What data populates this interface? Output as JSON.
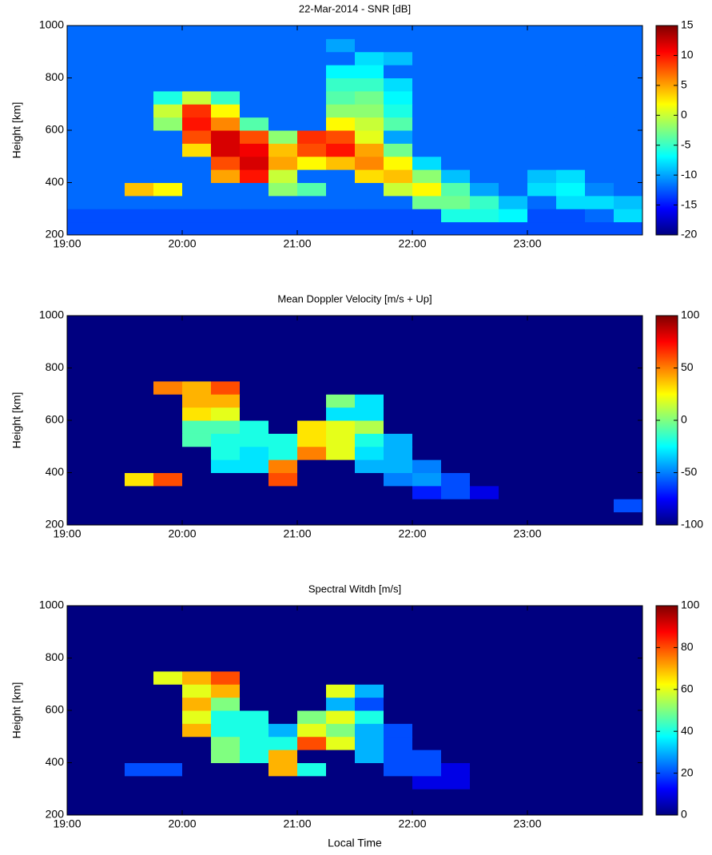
{
  "chart_data": [
    {
      "type": "heatmap",
      "title": "22-Mar-2014 - SNR [dB]",
      "ylabel": "Height [km]",
      "colormap": "jet",
      "xlim": [
        19,
        24
      ],
      "ylim": [
        200,
        1000
      ],
      "xticks": [
        {
          "value": 19,
          "label": "19:00"
        },
        {
          "value": 20,
          "label": "20:00"
        },
        {
          "value": 21,
          "label": "21:00"
        },
        {
          "value": 22,
          "label": "22:00"
        },
        {
          "value": 23,
          "label": "23:00"
        }
      ],
      "yticks": [
        200,
        400,
        600,
        800,
        1000
      ],
      "zlim": [
        -20,
        15
      ],
      "zticks": [
        -20,
        -15,
        -10,
        -5,
        0,
        5,
        10,
        15
      ],
      "xbins": [
        19,
        19.25,
        19.5,
        19.75,
        20,
        20.25,
        20.5,
        20.75,
        21,
        21.25,
        21.5,
        21.75,
        22,
        22.25,
        22.5,
        22.75,
        23,
        23.25,
        23.5,
        23.75,
        24
      ],
      "ybins": [
        200,
        250,
        300,
        350,
        400,
        450,
        500,
        550,
        600,
        650,
        700,
        750,
        800,
        850,
        900,
        950,
        1000
      ],
      "z": [
        [
          -13,
          -13,
          -13,
          -13,
          -13,
          -13,
          -13,
          -13,
          -13,
          -13,
          -13,
          -13,
          -13,
          -13,
          -13,
          -13,
          -13,
          -13,
          -13,
          -13
        ],
        [
          -13,
          -13,
          -13,
          -13,
          -13,
          -13,
          -13,
          -13,
          -13,
          -13,
          -13,
          -13,
          -13,
          -6,
          -6,
          -7,
          -13,
          -13,
          -12,
          -8
        ],
        [
          -12,
          -12,
          -12,
          -12,
          -12,
          -12,
          -12,
          -12,
          -12,
          -12,
          -12,
          -12,
          -3,
          -3,
          -5,
          -9,
          -12,
          -8,
          -8,
          -9
        ],
        [
          -12,
          -12,
          4,
          2,
          -12,
          -12,
          -12,
          -2,
          -4,
          -12,
          -12,
          0,
          2,
          -4,
          -10,
          -12,
          -8,
          -7,
          -11,
          -12
        ],
        [
          -12,
          -12,
          -12,
          -12,
          -12,
          5,
          10,
          0,
          -12,
          -12,
          3,
          4,
          -2,
          -9,
          -12,
          -12,
          -9,
          -8,
          -12,
          -12
        ],
        [
          -12,
          -12,
          -12,
          -12,
          -12,
          8,
          12,
          5,
          2,
          4,
          6,
          2,
          -8,
          -12,
          -12,
          -12,
          -12,
          -12,
          -12,
          -12
        ],
        [
          -12,
          -12,
          -12,
          -12,
          3,
          12,
          11,
          4,
          8,
          10,
          5,
          -3,
          -12,
          -12,
          -12,
          -12,
          -12,
          -12,
          -12,
          -12
        ],
        [
          -12,
          -12,
          -12,
          -12,
          8,
          12,
          8,
          -2,
          9,
          8,
          1,
          -10,
          -12,
          -12,
          -12,
          -12,
          -12,
          -12,
          -12,
          -12
        ],
        [
          -12,
          -12,
          -12,
          -2,
          10,
          6,
          -4,
          -12,
          -12,
          2,
          0,
          -4,
          -12,
          -12,
          -12,
          -12,
          -12,
          -12,
          -12,
          -12
        ],
        [
          -12,
          -12,
          -12,
          0,
          9,
          2,
          -12,
          -12,
          -12,
          -2,
          -2,
          -6,
          -12,
          -12,
          -12,
          -12,
          -12,
          -12,
          -12,
          -12
        ],
        [
          -12,
          -12,
          -12,
          -6,
          0,
          -5,
          -12,
          -12,
          -12,
          -4,
          -3,
          -7,
          -12,
          -12,
          -12,
          -12,
          -12,
          -12,
          -12,
          -12
        ],
        [
          -12,
          -12,
          -12,
          -12,
          -12,
          -12,
          -12,
          -12,
          -12,
          -5,
          -5,
          -8,
          -12,
          -12,
          -12,
          -12,
          -12,
          -12,
          -12,
          -12
        ],
        [
          -12,
          -12,
          -12,
          -12,
          -12,
          -12,
          -12,
          -12,
          -12,
          -7,
          -7,
          -12,
          -12,
          -12,
          -12,
          -12,
          -12,
          -12,
          -12,
          -12
        ],
        [
          -12,
          -12,
          -12,
          -12,
          -12,
          -12,
          -12,
          -12,
          -12,
          -12,
          -8,
          -9,
          -12,
          -12,
          -12,
          -12,
          -12,
          -12,
          -12,
          -12
        ],
        [
          -12,
          -12,
          -12,
          -12,
          -12,
          -12,
          -12,
          -12,
          -12,
          -10,
          -12,
          -12,
          -12,
          -12,
          -12,
          -12,
          -12,
          -12,
          -12,
          -12
        ],
        [
          -12,
          -12,
          -12,
          -12,
          -12,
          -12,
          -12,
          -12,
          -12,
          -12,
          -12,
          -12,
          -12,
          -12,
          -12,
          -12,
          -12,
          -12,
          -12,
          -12
        ]
      ]
    },
    {
      "type": "heatmap",
      "title": "Mean Doppler Velocity [m/s + Up]",
      "ylabel": "Height [km]",
      "colormap": "jet",
      "xlim": [
        19,
        24
      ],
      "ylim": [
        200,
        1000
      ],
      "xticks": [
        {
          "value": 19,
          "label": "19:00"
        },
        {
          "value": 20,
          "label": "20:00"
        },
        {
          "value": 21,
          "label": "21:00"
        },
        {
          "value": 22,
          "label": "22:00"
        },
        {
          "value": 23,
          "label": "23:00"
        }
      ],
      "yticks": [
        200,
        400,
        600,
        800,
        1000
      ],
      "zlim": [
        -100,
        100
      ],
      "zticks": [
        -100,
        -50,
        0,
        50,
        100
      ],
      "xbins": [
        19,
        19.25,
        19.5,
        19.75,
        20,
        20.25,
        20.5,
        20.75,
        21,
        21.25,
        21.5,
        21.75,
        22,
        22.25,
        22.5,
        22.75,
        23,
        23.25,
        23.5,
        23.75,
        24
      ],
      "ybins": [
        200,
        250,
        300,
        350,
        400,
        450,
        500,
        550,
        600,
        650,
        700,
        750,
        800,
        850,
        900,
        950,
        1000
      ],
      "z": [
        [
          -100,
          -100,
          -100,
          -100,
          -100,
          -100,
          -100,
          -100,
          -100,
          -100,
          -100,
          -100,
          -100,
          -100,
          -100,
          -100,
          -100,
          -100,
          -100,
          -100
        ],
        [
          -100,
          -100,
          -100,
          -100,
          -100,
          -100,
          -100,
          -100,
          -100,
          -100,
          -100,
          -100,
          -100,
          -100,
          -100,
          -100,
          -100,
          -100,
          -100,
          -60
        ],
        [
          -100,
          -100,
          -100,
          -100,
          -100,
          -100,
          -100,
          -100,
          -100,
          -100,
          -100,
          -100,
          -70,
          -60,
          -80,
          -100,
          -100,
          -100,
          -100,
          -100
        ],
        [
          -100,
          -100,
          30,
          60,
          -100,
          -100,
          -100,
          60,
          -100,
          -100,
          -100,
          -50,
          -45,
          -60,
          -100,
          -100,
          -100,
          -100,
          -100,
          -100
        ],
        [
          -100,
          -100,
          -100,
          -100,
          -100,
          -30,
          -30,
          50,
          -100,
          -100,
          -40,
          -40,
          -50,
          -100,
          -100,
          -100,
          -100,
          -100,
          -100,
          -100
        ],
        [
          -100,
          -100,
          -100,
          -100,
          -100,
          -20,
          -30,
          -20,
          50,
          20,
          -30,
          -40,
          -100,
          -100,
          -100,
          -100,
          -100,
          -100,
          -100,
          -100
        ],
        [
          -100,
          -100,
          -100,
          -100,
          -10,
          -20,
          -20,
          -20,
          30,
          20,
          -20,
          -40,
          -100,
          -100,
          -100,
          -100,
          -100,
          -100,
          -100,
          -100
        ],
        [
          -100,
          -100,
          -100,
          -100,
          -10,
          -10,
          -20,
          -100,
          30,
          20,
          10,
          -100,
          -100,
          -100,
          -100,
          -100,
          -100,
          -100,
          -100,
          -100
        ],
        [
          -100,
          -100,
          -100,
          -100,
          30,
          20,
          -100,
          -100,
          -100,
          -30,
          -30,
          -100,
          -100,
          -100,
          -100,
          -100,
          -100,
          -100,
          -100,
          -100
        ],
        [
          -100,
          -100,
          -100,
          -100,
          40,
          40,
          -100,
          -100,
          -100,
          0,
          -30,
          -100,
          -100,
          -100,
          -100,
          -100,
          -100,
          -100,
          -100,
          -100
        ],
        [
          -100,
          -100,
          -100,
          50,
          40,
          60,
          -100,
          -100,
          -100,
          -100,
          -100,
          -100,
          -100,
          -100,
          -100,
          -100,
          -100,
          -100,
          -100,
          -100
        ],
        [
          -100,
          -100,
          -100,
          -100,
          -100,
          -100,
          -100,
          -100,
          -100,
          -100,
          -100,
          -100,
          -100,
          -100,
          -100,
          -100,
          -100,
          -100,
          -100,
          -100
        ],
        [
          -100,
          -100,
          -100,
          -100,
          -100,
          -100,
          -100,
          -100,
          -100,
          -100,
          -100,
          -100,
          -100,
          -100,
          -100,
          -100,
          -100,
          -100,
          -100,
          -100
        ],
        [
          -100,
          -100,
          -100,
          -100,
          -100,
          -100,
          -100,
          -100,
          -100,
          -100,
          -100,
          -100,
          -100,
          -100,
          -100,
          -100,
          -100,
          -100,
          -100,
          -100
        ],
        [
          -100,
          -100,
          -100,
          -100,
          -100,
          -100,
          -100,
          -100,
          -100,
          -100,
          -100,
          -100,
          -100,
          -100,
          -100,
          -100,
          -100,
          -100,
          -100,
          -100
        ],
        [
          -100,
          -100,
          -100,
          -100,
          -100,
          -100,
          -100,
          -100,
          -100,
          -100,
          -100,
          -100,
          -100,
          -100,
          -100,
          -100,
          -100,
          -100,
          -100,
          -100
        ]
      ]
    },
    {
      "type": "heatmap",
      "title": "Spectral Witdh [m/s]",
      "ylabel": "Height [km]",
      "xlabel": "Local Time",
      "colormap": "jet",
      "xlim": [
        19,
        24
      ],
      "ylim": [
        200,
        1000
      ],
      "xticks": [
        {
          "value": 19,
          "label": "19:00"
        },
        {
          "value": 20,
          "label": "20:00"
        },
        {
          "value": 21,
          "label": "21:00"
        },
        {
          "value": 22,
          "label": "22:00"
        },
        {
          "value": 23,
          "label": "23:00"
        }
      ],
      "yticks": [
        200,
        400,
        600,
        800,
        1000
      ],
      "zlim": [
        0,
        100
      ],
      "zticks": [
        0,
        20,
        40,
        60,
        80,
        100
      ],
      "xbins": [
        19,
        19.25,
        19.5,
        19.75,
        20,
        20.25,
        20.5,
        20.75,
        21,
        21.25,
        21.5,
        21.75,
        22,
        22.25,
        22.5,
        22.75,
        23,
        23.25,
        23.5,
        23.75,
        24
      ],
      "ybins": [
        200,
        250,
        300,
        350,
        400,
        450,
        500,
        550,
        600,
        650,
        700,
        750,
        800,
        850,
        900,
        950,
        1000
      ],
      "z": [
        [
          0,
          0,
          0,
          0,
          0,
          0,
          0,
          0,
          0,
          0,
          0,
          0,
          0,
          0,
          0,
          0,
          0,
          0,
          0,
          0
        ],
        [
          0,
          0,
          0,
          0,
          0,
          0,
          0,
          0,
          0,
          0,
          0,
          0,
          0,
          0,
          0,
          0,
          0,
          0,
          0,
          0
        ],
        [
          0,
          0,
          0,
          0,
          0,
          0,
          0,
          0,
          0,
          0,
          0,
          0,
          10,
          10,
          0,
          0,
          0,
          0,
          0,
          0
        ],
        [
          0,
          0,
          20,
          20,
          0,
          0,
          0,
          70,
          40,
          0,
          0,
          20,
          20,
          10,
          0,
          0,
          0,
          0,
          0,
          0
        ],
        [
          0,
          0,
          0,
          0,
          0,
          50,
          40,
          70,
          0,
          0,
          30,
          20,
          20,
          0,
          0,
          0,
          0,
          0,
          0,
          0
        ],
        [
          0,
          0,
          0,
          0,
          0,
          50,
          40,
          40,
          80,
          60,
          30,
          20,
          0,
          0,
          0,
          0,
          0,
          0,
          0,
          0
        ],
        [
          0,
          0,
          0,
          0,
          70,
          40,
          40,
          30,
          60,
          50,
          30,
          20,
          0,
          0,
          0,
          0,
          0,
          0,
          0,
          0
        ],
        [
          0,
          0,
          0,
          0,
          60,
          40,
          40,
          0,
          50,
          60,
          40,
          0,
          0,
          0,
          0,
          0,
          0,
          0,
          0,
          0
        ],
        [
          0,
          0,
          0,
          0,
          70,
          50,
          0,
          0,
          0,
          30,
          20,
          0,
          0,
          0,
          0,
          0,
          0,
          0,
          0,
          0
        ],
        [
          0,
          0,
          0,
          0,
          60,
          70,
          0,
          0,
          0,
          60,
          30,
          0,
          0,
          0,
          0,
          0,
          0,
          0,
          0,
          0
        ],
        [
          0,
          0,
          0,
          60,
          70,
          80,
          0,
          0,
          0,
          0,
          0,
          0,
          0,
          0,
          0,
          0,
          0,
          0,
          0,
          0
        ],
        [
          0,
          0,
          0,
          0,
          0,
          0,
          0,
          0,
          0,
          0,
          0,
          0,
          0,
          0,
          0,
          0,
          0,
          0,
          0,
          0
        ],
        [
          0,
          0,
          0,
          0,
          0,
          0,
          0,
          0,
          0,
          0,
          0,
          0,
          0,
          0,
          0,
          0,
          0,
          0,
          0,
          0
        ],
        [
          0,
          0,
          0,
          0,
          0,
          0,
          0,
          0,
          0,
          0,
          0,
          0,
          0,
          0,
          0,
          0,
          0,
          0,
          0,
          0
        ],
        [
          0,
          0,
          0,
          0,
          0,
          0,
          0,
          0,
          0,
          0,
          0,
          0,
          0,
          0,
          0,
          0,
          0,
          0,
          0,
          0
        ],
        [
          0,
          0,
          0,
          0,
          0,
          0,
          0,
          0,
          0,
          0,
          0,
          0,
          0,
          0,
          0,
          0,
          0,
          0,
          0,
          0
        ]
      ]
    }
  ]
}
